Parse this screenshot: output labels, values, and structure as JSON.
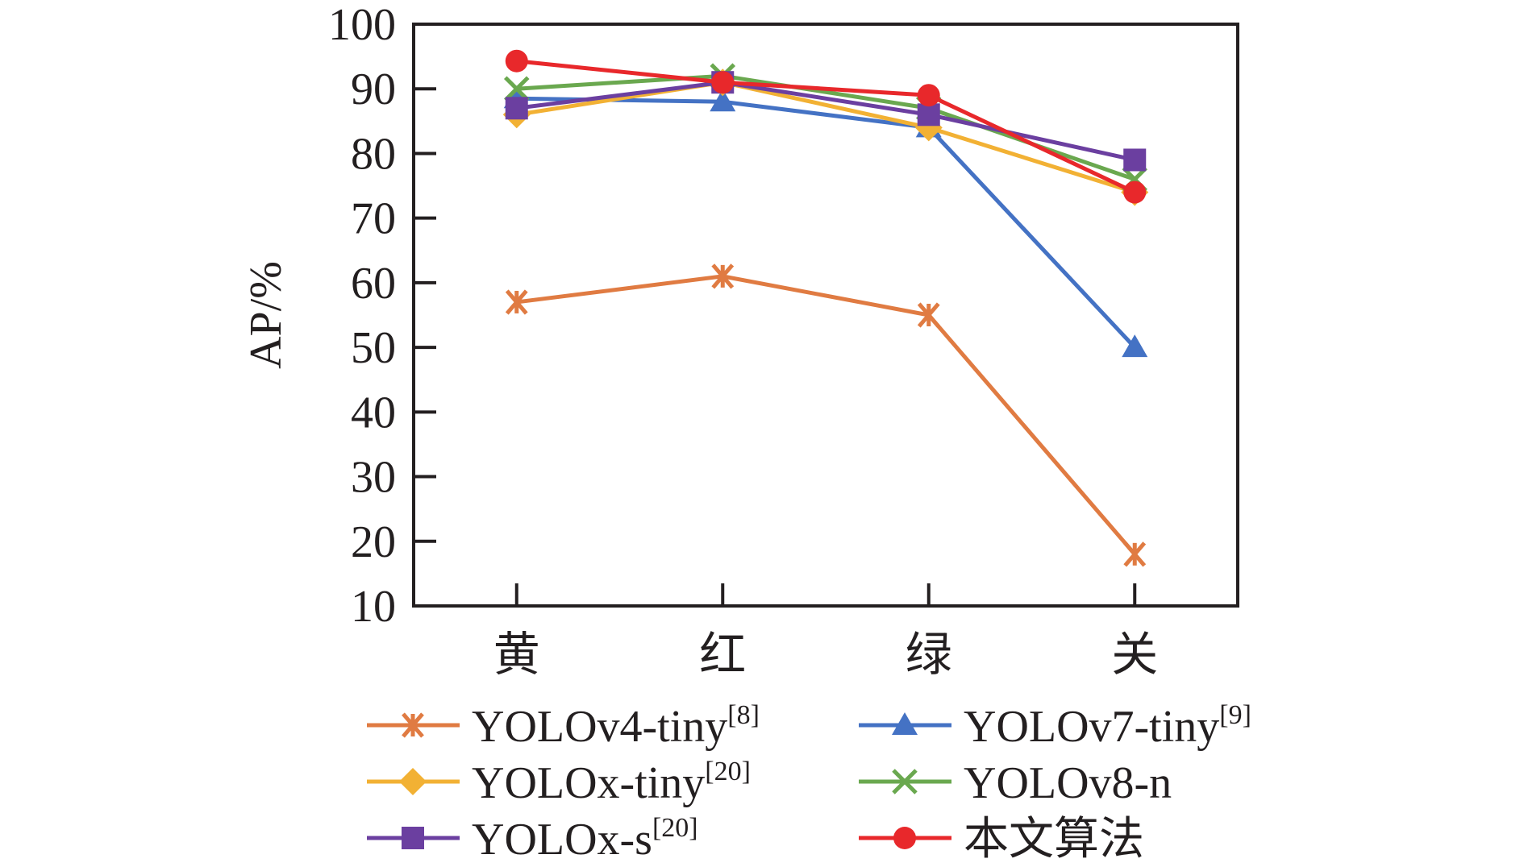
{
  "chart_data": {
    "type": "line",
    "title": "",
    "xlabel": "",
    "ylabel": "AP/%",
    "categories": [
      "黄",
      "红",
      "绿",
      "关"
    ],
    "ylim": [
      10,
      100
    ],
    "yticks": [
      10,
      20,
      30,
      40,
      50,
      60,
      70,
      80,
      90,
      100
    ],
    "grid": false,
    "legend_position": "bottom",
    "series": [
      {
        "name": "YOLOv4-tiny",
        "ref": "[8]",
        "color": "#e07b42",
        "marker": "asterisk",
        "values": [
          57,
          61,
          55,
          18
        ]
      },
      {
        "name": "YOLOv7-tiny",
        "ref": "[9]",
        "color": "#4472c4",
        "marker": "triangle",
        "values": [
          88.5,
          88,
          84,
          50
        ]
      },
      {
        "name": "YOLOx-tiny",
        "ref": "[20]",
        "color": "#f2b134",
        "marker": "diamond",
        "values": [
          86,
          91,
          84,
          74
        ]
      },
      {
        "name": "YOLOv8-n",
        "ref": "",
        "color": "#6aa84f",
        "marker": "x",
        "values": [
          90,
          92,
          87,
          76
        ]
      },
      {
        "name": "YOLOx-s",
        "ref": "[20]",
        "color": "#6b3fa0",
        "marker": "square",
        "values": [
          87,
          91,
          86,
          79
        ]
      },
      {
        "name": "本文算法",
        "ref": "",
        "color": "#e8282b",
        "marker": "circle",
        "values": [
          94.3,
          91,
          89,
          74
        ]
      }
    ]
  }
}
